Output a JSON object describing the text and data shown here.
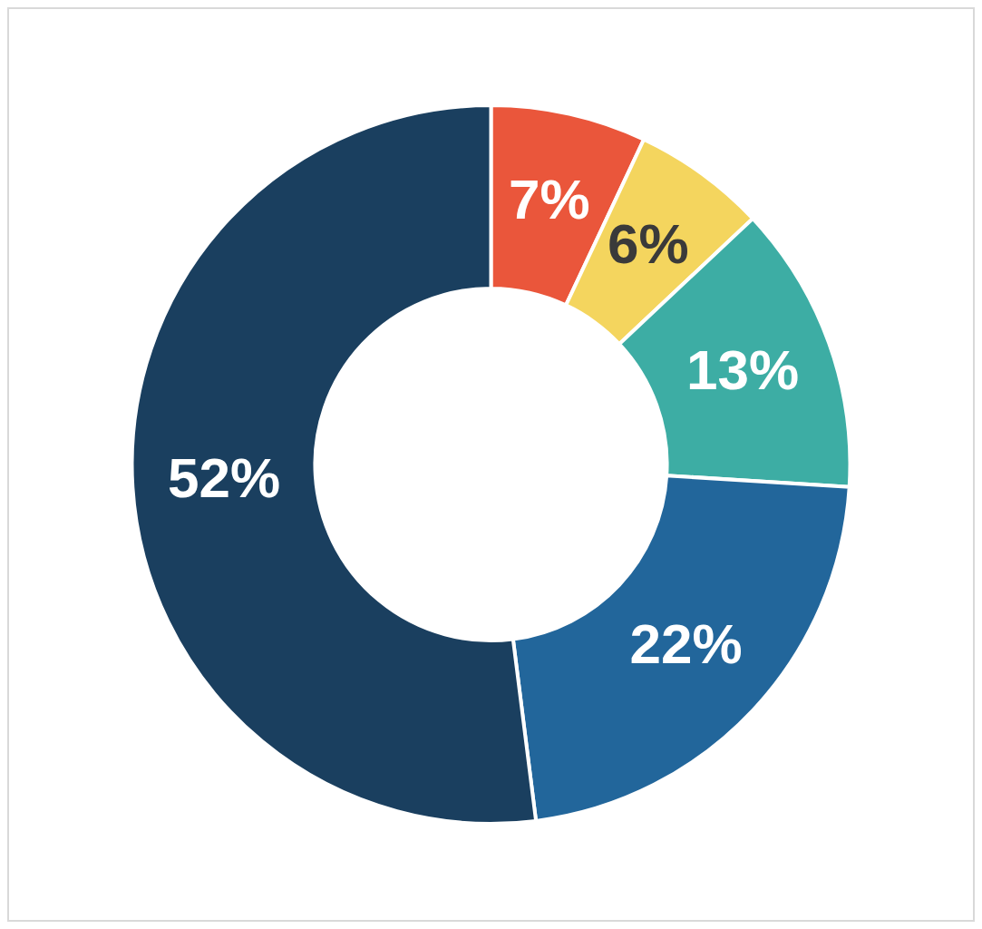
{
  "chart_data": {
    "type": "donut",
    "categories": [
      null,
      null,
      null,
      null,
      null
    ],
    "values": [
      7,
      6,
      13,
      22,
      52
    ],
    "colors": [
      "#ea563b",
      "#f4d55e",
      "#3dada4",
      "#22669b",
      "#1a3f5f"
    ],
    "value_labels": [
      "7%",
      "6%",
      "13%",
      "22%",
      "52%"
    ],
    "legend": false
  }
}
